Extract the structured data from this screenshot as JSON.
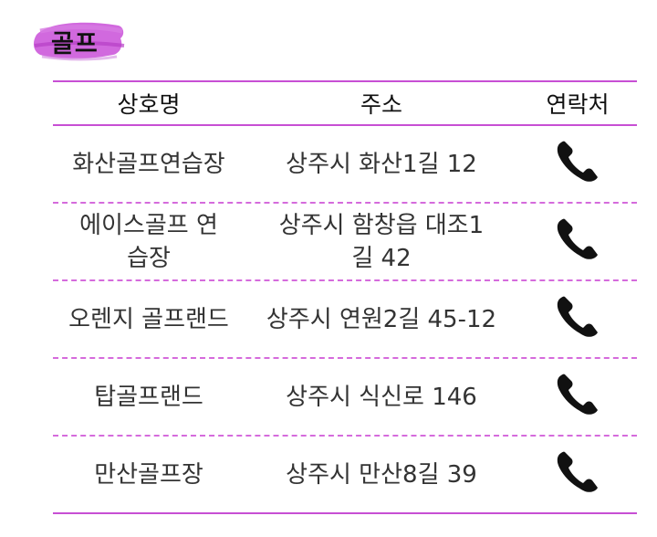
{
  "section": {
    "title": "골프",
    "brush_color": "#c94fd8"
  },
  "table": {
    "headers": {
      "name": "상호명",
      "address": "주소",
      "contact": "연락처"
    },
    "rows": [
      {
        "name": "화산골프연습장",
        "address": "상주시 화산1길 12",
        "contact_icon": "phone-icon"
      },
      {
        "name": "에이스골프 연습장",
        "address": "상주시 함창읍 대조1길 42",
        "contact_icon": "phone-icon"
      },
      {
        "name": "오렌지 골프랜드",
        "address": "상주시 연원2길 45-12",
        "contact_icon": "phone-icon"
      },
      {
        "name": "탑골프랜드",
        "address": "상주시 식신로 146",
        "contact_icon": "phone-icon"
      },
      {
        "name": "만산골프장",
        "address": "상주시 만산8길 39",
        "contact_icon": "phone-icon"
      }
    ]
  },
  "colors": {
    "accent": "#c74fd4",
    "divider": "#d56bdc"
  }
}
